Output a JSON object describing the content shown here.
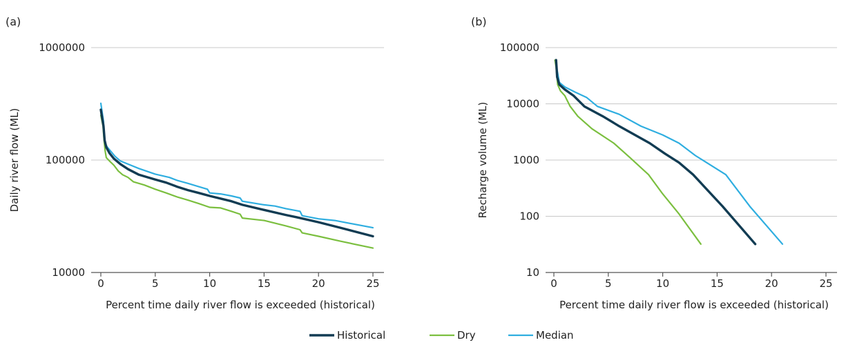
{
  "chart_data": [
    {
      "panel": "(a)",
      "type": "line",
      "xlabel": "Percent time daily river flow is exceeded (historical)",
      "ylabel": "Daily river flow (ML)",
      "yscale": "log",
      "xlim": [
        0,
        25
      ],
      "ylim": [
        10000,
        1000000
      ],
      "xticks": [
        0,
        5,
        10,
        15,
        20,
        25
      ],
      "yticks": [
        10000,
        100000,
        1000000
      ],
      "grid": "horizontal",
      "series": [
        {
          "name": "Historical",
          "x": [
            0,
            0.25,
            0.35,
            0.5,
            0.8,
            1.2,
            1.8,
            2.5,
            3.5,
            5,
            6,
            7,
            8,
            9,
            10,
            12,
            13,
            15,
            17,
            18,
            20,
            22,
            25
          ],
          "y": [
            280000,
            200000,
            150000,
            130000,
            115000,
            103000,
            92000,
            83000,
            74000,
            67000,
            63000,
            58000,
            54000,
            51000,
            48000,
            43000,
            40000,
            36000,
            32500,
            31000,
            28000,
            25000,
            21000
          ]
        },
        {
          "name": "Dry",
          "x": [
            0,
            0.2,
            0.3,
            0.4,
            0.5,
            0.8,
            1.2,
            1.6,
            2,
            2.5,
            3,
            4,
            5,
            6,
            7,
            8,
            9,
            10,
            11,
            12,
            12.8,
            13,
            15,
            17,
            18.3,
            18.5,
            20,
            22,
            25
          ],
          "y": [
            250000,
            200000,
            150000,
            120000,
            105000,
            98000,
            90000,
            80000,
            74000,
            70000,
            64000,
            60000,
            55000,
            51000,
            47000,
            44000,
            41000,
            38000,
            37500,
            35000,
            33000,
            30500,
            29000,
            26000,
            24000,
            22500,
            21000,
            19000,
            16500
          ]
        },
        {
          "name": "Median",
          "x": [
            0,
            0.25,
            0.3,
            0.4,
            0.6,
            0.9,
            1.3,
            1.8,
            2.5,
            3.5,
            5,
            6.3,
            7,
            8,
            9,
            9.8,
            10,
            11,
            12,
            12.8,
            13,
            15,
            16,
            17,
            18.3,
            18.5,
            20,
            21.5,
            25
          ],
          "y": [
            320000,
            220000,
            160000,
            140000,
            130000,
            120000,
            108000,
            98000,
            92000,
            84000,
            75000,
            70000,
            66000,
            62000,
            58000,
            55000,
            51000,
            50000,
            48000,
            46000,
            43000,
            40000,
            39000,
            37000,
            35000,
            32000,
            30000,
            29000,
            25000
          ]
        }
      ]
    },
    {
      "panel": "(b)",
      "type": "line",
      "xlabel": "Percent time daily river flow is exceeded (historical)",
      "ylabel": "Recharge volume (ML)",
      "yscale": "log",
      "xlim": [
        0,
        25
      ],
      "ylim": [
        10,
        100000
      ],
      "xticks": [
        0,
        5,
        10,
        15,
        20,
        25
      ],
      "yticks": [
        10,
        100,
        1000,
        10000,
        100000
      ],
      "grid": "horizontal",
      "series": [
        {
          "name": "Historical",
          "x": [
            0.2,
            0.25,
            0.3,
            0.5,
            1,
            1.8,
            2.8,
            4.5,
            6,
            8.8,
            10.2,
            11.5,
            12.8,
            15.5,
            18.5
          ],
          "y": [
            60000,
            45000,
            30000,
            22000,
            18000,
            14000,
            9000,
            6000,
            4000,
            2000,
            1300,
            900,
            550,
            150,
            32
          ]
        },
        {
          "name": "Dry",
          "x": [
            0.1,
            0.2,
            0.35,
            0.6,
            1,
            1.5,
            2.2,
            3.5,
            5.5,
            7,
            8.7,
            10,
            11.5,
            13.5
          ],
          "y": [
            60000,
            45000,
            22000,
            17000,
            14000,
            9000,
            6000,
            3600,
            2000,
            1100,
            550,
            250,
            110,
            32
          ]
        },
        {
          "name": "Median",
          "x": [
            0.2,
            0.3,
            0.5,
            1,
            2,
            3,
            4,
            6,
            8,
            10,
            11.5,
            13,
            15.8,
            18,
            21
          ],
          "y": [
            55000,
            40000,
            24000,
            20000,
            16000,
            13000,
            9000,
            6500,
            4000,
            2800,
            2000,
            1200,
            550,
            150,
            32
          ]
        }
      ]
    }
  ],
  "legend": {
    "position": "bottom-center",
    "items": [
      {
        "name": "Historical",
        "color": "#123c53"
      },
      {
        "name": "Dry",
        "color": "#7bbf3f"
      },
      {
        "name": "Median",
        "color": "#2faee0"
      }
    ]
  },
  "colors": {
    "Historical": "#123c53",
    "Dry": "#7bbf3f",
    "Median": "#2faee0"
  }
}
